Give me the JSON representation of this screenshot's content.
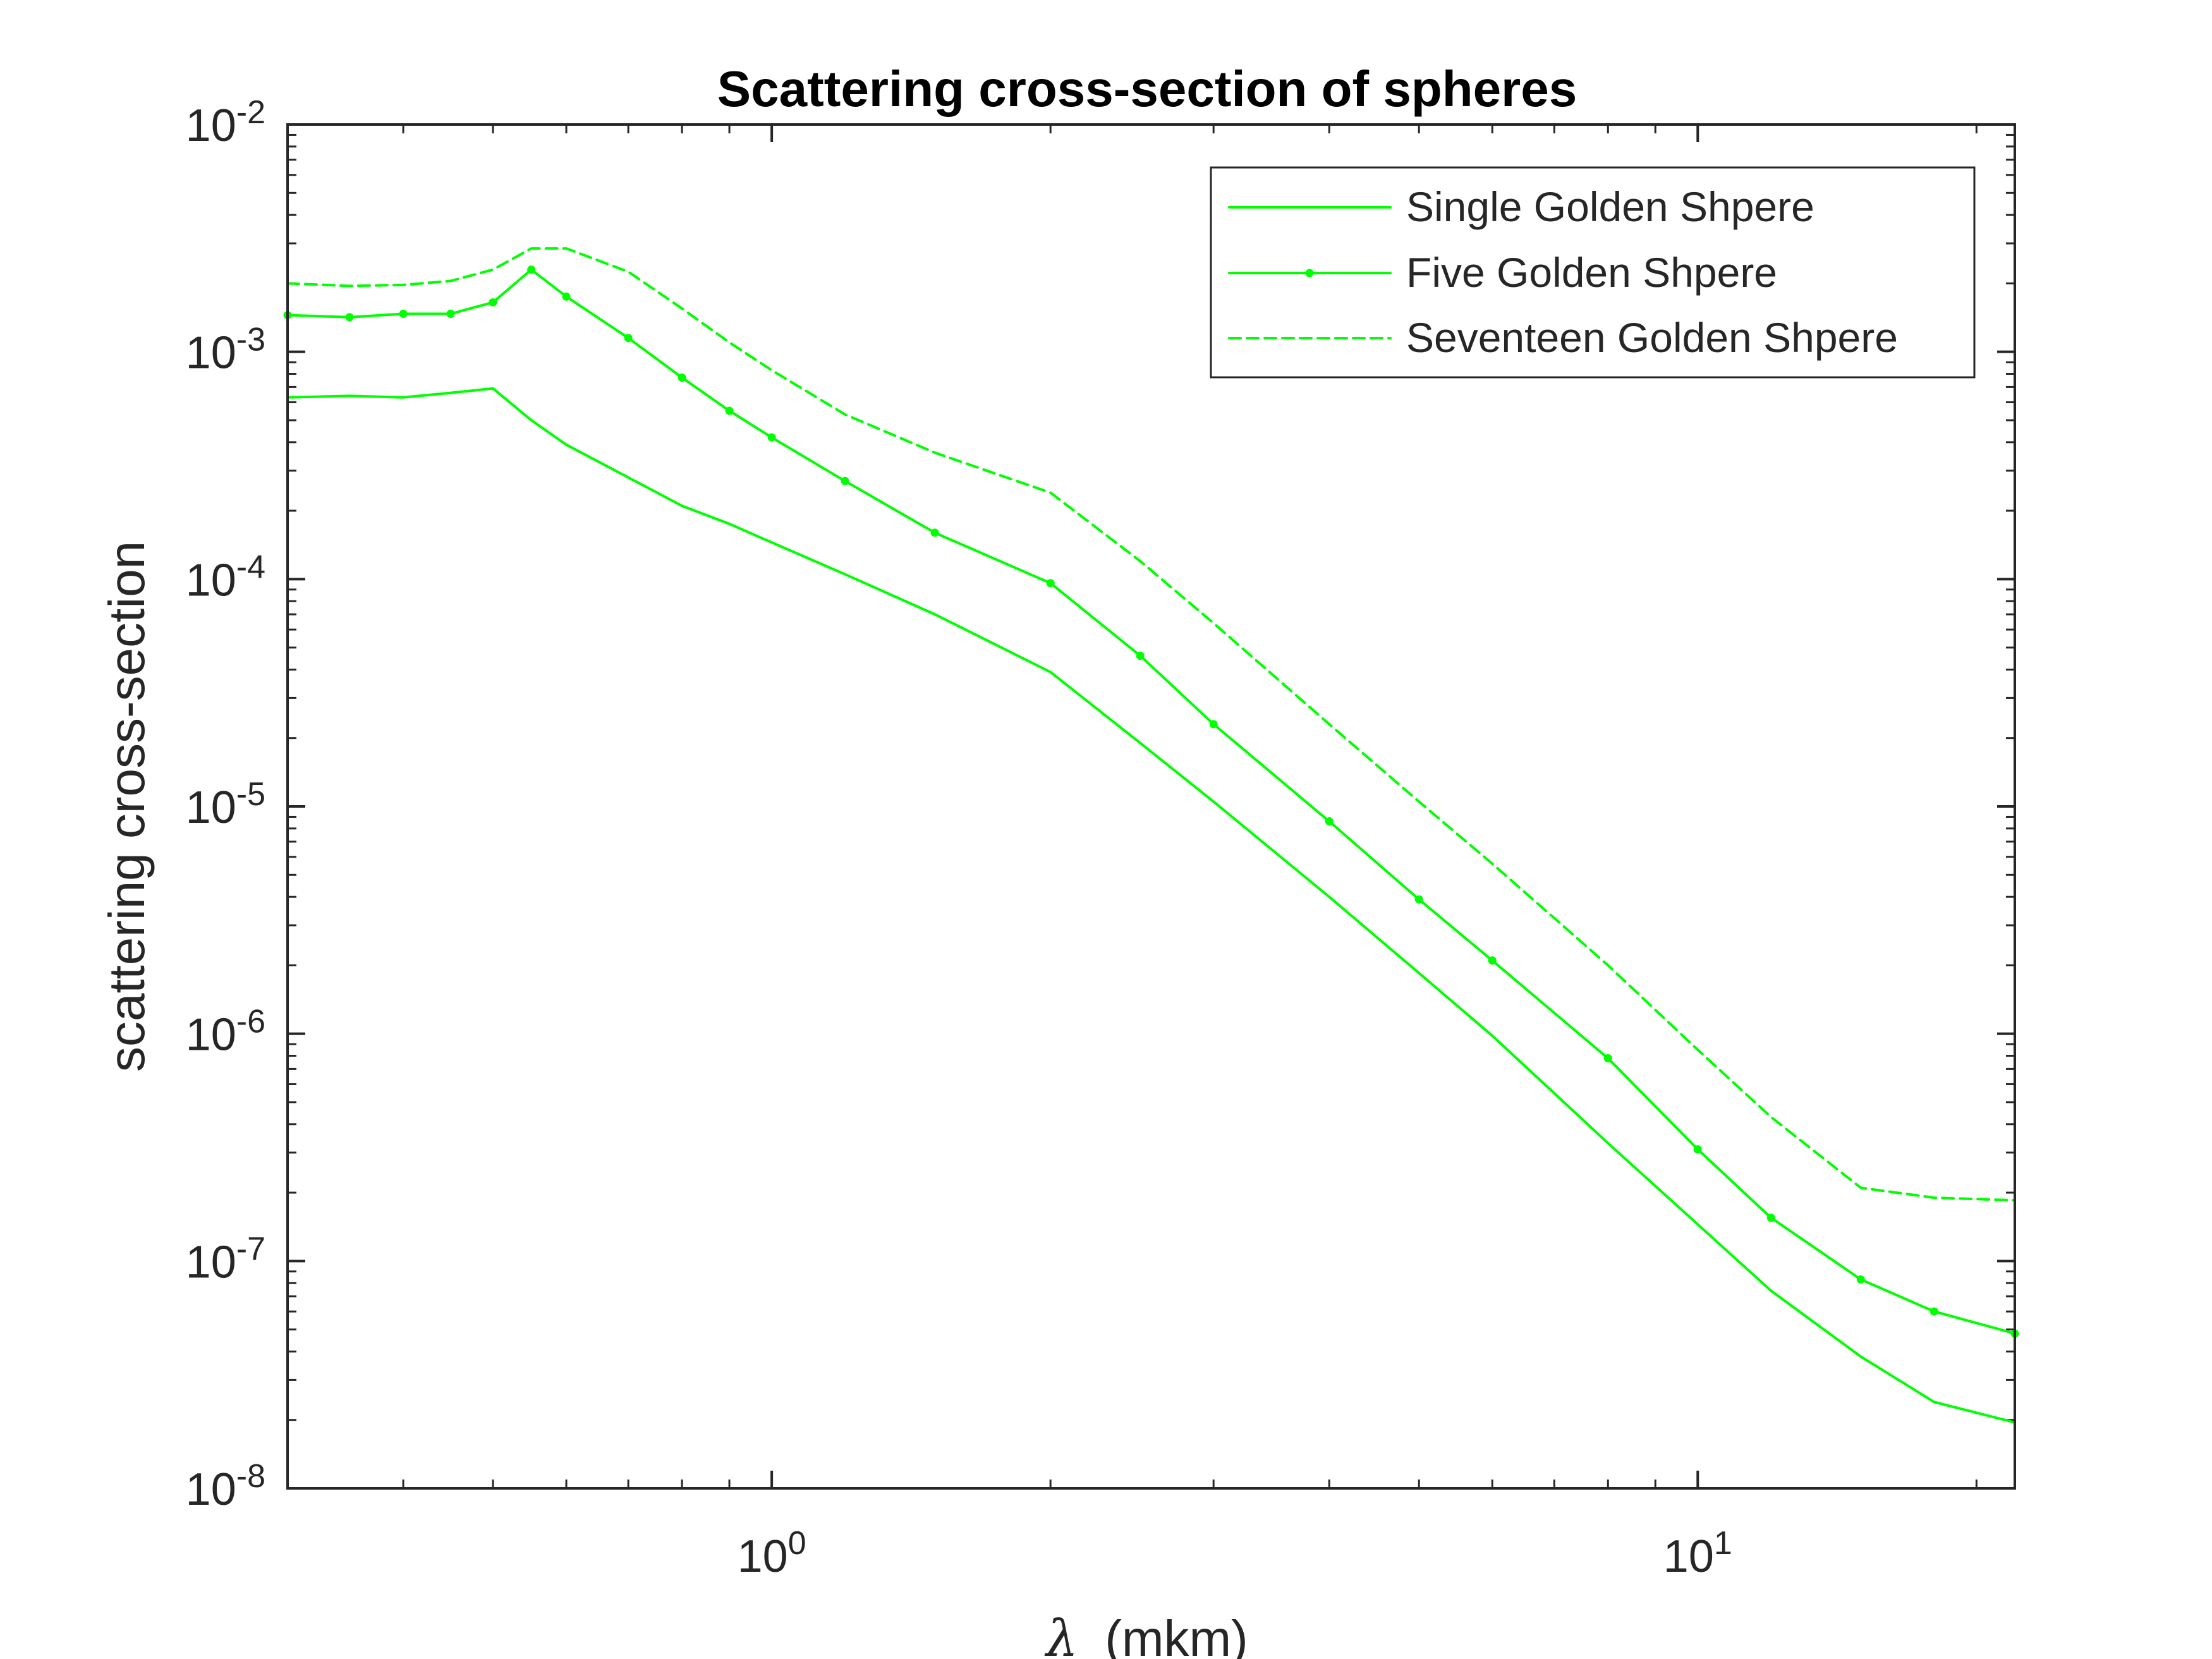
{
  "chart_data": {
    "type": "line",
    "title": "Scattering cross-section of spheres",
    "xlabel_symbol": "λ",
    "xlabel_unit": "(mkm)",
    "ylabel": "scattering cross-section",
    "xscale": "log",
    "yscale": "log",
    "xlim": [
      0.3,
      22
    ],
    "ylim": [
      1e-08,
      0.01
    ],
    "x_ticks": [
      {
        "base": "10",
        "exp": "0",
        "value": 1
      },
      {
        "base": "10",
        "exp": "1",
        "value": 10
      }
    ],
    "y_ticks": [
      {
        "base": "10",
        "exp": "-8",
        "value": 1e-08
      },
      {
        "base": "10",
        "exp": "-7",
        "value": 1e-07
      },
      {
        "base": "10",
        "exp": "-6",
        "value": 1e-06
      },
      {
        "base": "10",
        "exp": "-5",
        "value": 1e-05
      },
      {
        "base": "10",
        "exp": "-4",
        "value": 0.0001
      },
      {
        "base": "10",
        "exp": "-3",
        "value": 0.001
      },
      {
        "base": "10",
        "exp": "-2",
        "value": 0.01
      }
    ],
    "grid": false,
    "legend_position": "top-right",
    "line_color": "#00ff00",
    "series": [
      {
        "name": "Single Golden Shpere",
        "style": "solid",
        "marker": "none",
        "x": [
          0.3,
          0.35,
          0.4,
          0.45,
          0.5,
          0.55,
          0.6,
          0.7,
          0.8,
          0.9,
          1.0,
          1.2,
          1.5,
          2.0,
          2.5,
          3.0,
          4.0,
          5.0,
          6.0,
          8.0,
          10.0,
          12.0,
          15.0,
          18.0,
          22.0
        ],
        "y": [
          0.00063,
          0.00064,
          0.00063,
          0.00066,
          0.00069,
          0.0005,
          0.00039,
          0.00028,
          0.00021,
          0.000175,
          0.000145,
          0.000105,
          7e-05,
          3.9e-05,
          1.9e-05,
          1.05e-05,
          4e-06,
          1.85e-06,
          9.8e-07,
          3.3e-07,
          1.45e-07,
          7.4e-08,
          3.8e-08,
          2.4e-08,
          1.95e-08
        ]
      },
      {
        "name": "Five Golden Shpere",
        "style": "solid",
        "marker": "dot",
        "x": [
          0.3,
          0.35,
          0.4,
          0.45,
          0.5,
          0.55,
          0.6,
          0.7,
          0.8,
          0.9,
          1.0,
          1.2,
          1.5,
          2.0,
          2.5,
          3.0,
          4.0,
          5.0,
          6.0,
          8.0,
          10.0,
          12.0,
          15.0,
          18.0,
          22.0
        ],
        "y": [
          0.00145,
          0.00142,
          0.00147,
          0.00147,
          0.00165,
          0.0023,
          0.00175,
          0.00115,
          0.00077,
          0.00055,
          0.00042,
          0.00027,
          0.00016,
          9.6e-05,
          4.6e-05,
          2.3e-05,
          8.6e-06,
          3.9e-06,
          2.1e-06,
          7.8e-07,
          3.1e-07,
          1.55e-07,
          8.3e-08,
          6e-08,
          4.8e-08
        ]
      },
      {
        "name": "Seventeen Golden Shpere",
        "style": "dashed",
        "marker": "none",
        "x": [
          0.3,
          0.35,
          0.4,
          0.45,
          0.5,
          0.55,
          0.6,
          0.7,
          0.8,
          0.9,
          1.0,
          1.2,
          1.5,
          2.0,
          2.5,
          3.0,
          4.0,
          5.0,
          6.0,
          8.0,
          10.0,
          12.0,
          15.0,
          18.0,
          22.0
        ],
        "y": [
          0.002,
          0.00195,
          0.00197,
          0.00205,
          0.0023,
          0.00285,
          0.00285,
          0.00225,
          0.00155,
          0.0011,
          0.00083,
          0.00053,
          0.00036,
          0.00024,
          0.00012,
          6.4e-05,
          2.3e-05,
          1.05e-05,
          5.6e-06,
          2e-06,
          8.5e-07,
          4.3e-07,
          2.1e-07,
          1.9e-07,
          1.85e-07
        ]
      }
    ]
  }
}
